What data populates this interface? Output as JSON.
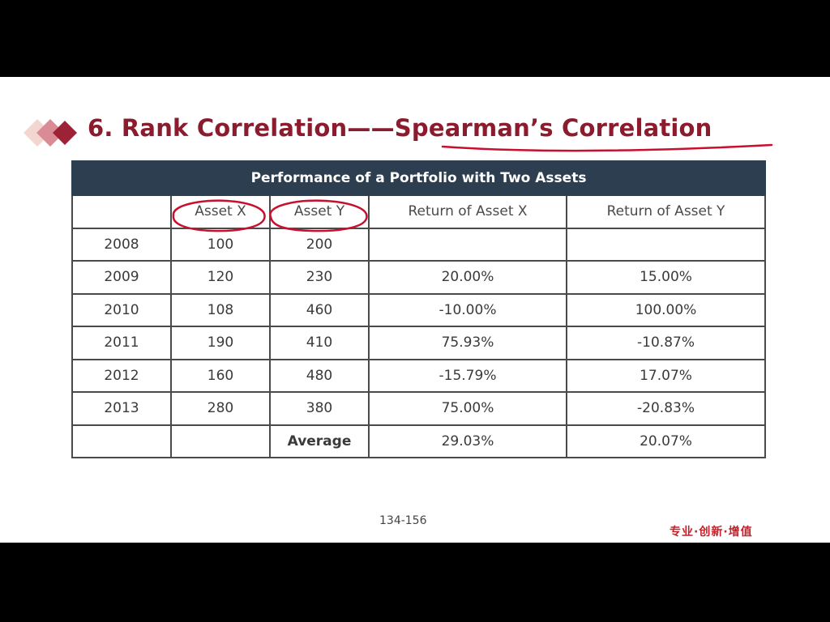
{
  "slide": {
    "title": "6. Rank Correlation——Spearman’s Correlation",
    "page_number": "134-156",
    "slogan": "专业·创新·增值"
  },
  "table": {
    "caption": "Performance of a Portfolio with Two Assets",
    "headers": [
      "",
      "Asset X",
      "Asset Y",
      "Return of Asset X",
      "Return of Asset  Y"
    ],
    "rows": [
      [
        "2008",
        "100",
        "200",
        "",
        ""
      ],
      [
        "2009",
        "120",
        "230",
        "20.00%",
        "15.00%"
      ],
      [
        "2010",
        "108",
        "460",
        "-10.00%",
        "100.00%"
      ],
      [
        "2011",
        "190",
        "410",
        "75.93%",
        "-10.87%"
      ],
      [
        "2012",
        "160",
        "480",
        "-15.79%",
        "17.07%"
      ],
      [
        "2013",
        "280",
        "380",
        "75.00%",
        "-20.83%"
      ]
    ],
    "average_row": [
      "",
      "",
      "Average",
      "29.03%",
      "20.07%"
    ]
  },
  "colors": {
    "title": "#8b1c2e",
    "table_header_bg": "#2d3e50",
    "annotation_ink": "#c8102e",
    "slogan": "#c8202a"
  },
  "icons": {
    "title_bullet": "diamond-bullets-icon"
  }
}
